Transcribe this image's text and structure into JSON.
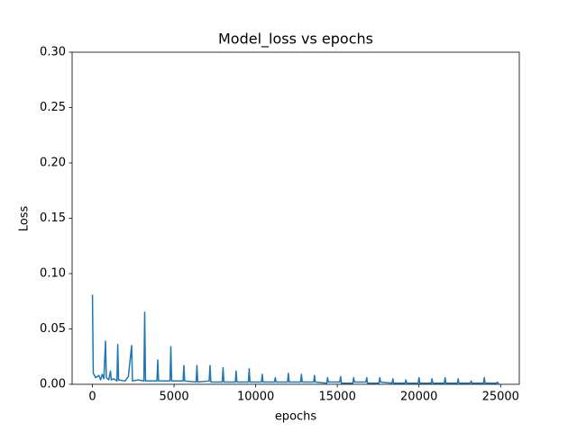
{
  "chart_data": {
    "type": "line",
    "title": "Model_loss vs epochs",
    "xlabel": "epochs",
    "ylabel": "Loss",
    "x": [
      0,
      50,
      200,
      400,
      500,
      600,
      700,
      800,
      850,
      1000,
      1100,
      1150,
      1300,
      1500,
      1550,
      1600,
      2000,
      2200,
      2400,
      2450,
      2800,
      3150,
      3200,
      3250,
      3950,
      4000,
      4050,
      4750,
      4800,
      4850,
      5550,
      5600,
      5650,
      6350,
      6400,
      6450,
      7150,
      7200,
      7250,
      7950,
      8000,
      8050,
      8750,
      8800,
      8850,
      9550,
      9600,
      9650,
      10350,
      10400,
      10450,
      11150,
      11200,
      11250,
      11950,
      12000,
      12050,
      12750,
      12800,
      12850,
      13550,
      13600,
      13650,
      14350,
      14400,
      14450,
      15150,
      15200,
      15250,
      15950,
      16000,
      16050,
      16750,
      16800,
      16850,
      17550,
      17600,
      17650,
      18350,
      18400,
      18450,
      19150,
      19200,
      19250,
      19950,
      20000,
      20050,
      20750,
      20800,
      20850,
      21550,
      21600,
      21650,
      22350,
      22400,
      22450,
      23150,
      23200,
      23250,
      23950,
      24000,
      24050,
      24750,
      24800,
      24850,
      24900
    ],
    "series": [
      {
        "name": "Loss",
        "color": "#1f77b4",
        "values": [
          0.081,
          0.01,
          0.006,
          0.008,
          0.004,
          0.009,
          0.005,
          0.039,
          0.006,
          0.004,
          0.012,
          0.004,
          0.005,
          0.003,
          0.036,
          0.004,
          0.003,
          0.007,
          0.035,
          0.003,
          0.004,
          0.003,
          0.065,
          0.003,
          0.003,
          0.022,
          0.003,
          0.003,
          0.034,
          0.003,
          0.003,
          0.017,
          0.003,
          0.002,
          0.017,
          0.002,
          0.003,
          0.017,
          0.002,
          0.002,
          0.015,
          0.002,
          0.002,
          0.012,
          0.002,
          0.002,
          0.014,
          0.002,
          0.002,
          0.009,
          0.002,
          0.002,
          0.006,
          0.002,
          0.002,
          0.01,
          0.002,
          0.002,
          0.009,
          0.002,
          0.002,
          0.008,
          0.002,
          0.001,
          0.006,
          0.002,
          0.002,
          0.007,
          0.001,
          0.001,
          0.006,
          0.002,
          0.002,
          0.006,
          0.001,
          0.001,
          0.006,
          0.002,
          0.001,
          0.005,
          0.001,
          0.001,
          0.004,
          0.001,
          0.001,
          0.006,
          0.001,
          0.001,
          0.005,
          0.001,
          0.001,
          0.006,
          0.001,
          0.001,
          0.005,
          0.001,
          0.001,
          0.003,
          0.001,
          0.001,
          0.006,
          0.001,
          0.001,
          0.002,
          0.001,
          0.001
        ]
      }
    ],
    "xlim": [
      -1245,
      26145
    ],
    "ylim": [
      0,
      0.3
    ],
    "xticks": [
      0,
      5000,
      10000,
      15000,
      20000,
      25000
    ],
    "yticks": [
      {
        "value": 0,
        "label": "0.00"
      },
      {
        "value": 0.05,
        "label": "0.05"
      },
      {
        "value": 0.1,
        "label": "0.10"
      },
      {
        "value": 0.15,
        "label": "0.15"
      },
      {
        "value": 0.2,
        "label": "0.20"
      },
      {
        "value": 0.25,
        "label": "0.25"
      },
      {
        "value": 0.3,
        "label": "0.30"
      }
    ]
  }
}
